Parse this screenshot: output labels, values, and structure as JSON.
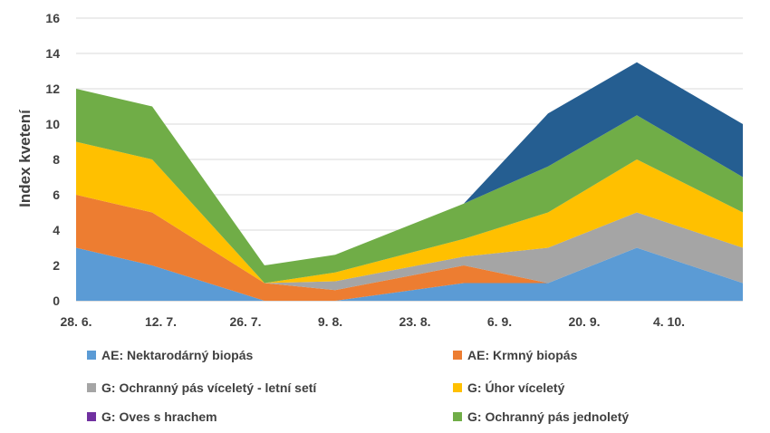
{
  "chart_data": {
    "type": "area",
    "stacked": true,
    "ylabel": "Index kvetení",
    "ylim": [
      0,
      16
    ],
    "yticks": [
      "0",
      "2",
      "4",
      "6",
      "8",
      "10",
      "12",
      "14",
      "16"
    ],
    "xticks": [
      "28. 6.",
      "12. 7.",
      "26. 7.",
      "9. 8.",
      "23. 8.",
      "6. 9.",
      "20. 9.",
      "4. 10."
    ],
    "grid": true,
    "legend_position": "bottom",
    "series": [
      {
        "name": "AE: Nektarodárný biopás",
        "color": "#5b9bd5",
        "points": [
          [
            28.6,
            3.0
          ],
          [
            12.7,
            2.0
          ],
          [
            27.7,
            0.0
          ],
          [
            11.8,
            0.0
          ],
          [
            1.9,
            1.0
          ],
          [
            16.9,
            1.0
          ],
          [
            1.1,
            3.0
          ],
          [
            16.1,
            1.0
          ]
        ]
      },
      {
        "name": "AE: Krmný biopás",
        "color": "#ed7d31",
        "points": [
          [
            28.6,
            3.0
          ],
          [
            12.7,
            3.0
          ],
          [
            27.7,
            1.0
          ],
          [
            11.8,
            0.6
          ],
          [
            1.9,
            1.0
          ],
          [
            16.9,
            0.0
          ],
          [
            1.1,
            0.0
          ],
          [
            16.1,
            0.0
          ]
        ]
      },
      {
        "name": "G: Ochranný pás víceletý - letní setí",
        "color": "#a5a5a5",
        "points": [
          [
            28.6,
            0.0
          ],
          [
            12.7,
            0.0
          ],
          [
            27.7,
            0.0
          ],
          [
            11.8,
            0.5
          ],
          [
            1.9,
            0.5
          ],
          [
            16.9,
            2.0
          ],
          [
            1.1,
            2.0
          ],
          [
            16.1,
            2.0
          ]
        ]
      },
      {
        "name": "G: Úhor víceletý",
        "color": "#ffc000",
        "points": [
          [
            28.6,
            3.0
          ],
          [
            12.7,
            3.0
          ],
          [
            27.7,
            0.0
          ],
          [
            11.8,
            0.5
          ],
          [
            1.9,
            1.0
          ],
          [
            16.9,
            2.0
          ],
          [
            1.1,
            3.0
          ],
          [
            16.1,
            2.0
          ]
        ]
      },
      {
        "name": "G: Oves s hrachem",
        "color": "#7030a0",
        "points": [
          [
            28.6,
            0.0
          ],
          [
            12.7,
            0.0
          ],
          [
            27.7,
            0.0
          ],
          [
            11.8,
            0.0
          ],
          [
            1.9,
            0.0
          ],
          [
            16.9,
            0.0
          ],
          [
            1.1,
            0.0
          ],
          [
            16.1,
            0.0
          ]
        ]
      },
      {
        "name": "G: Ochranný pás jednoletý",
        "color": "#70ad47",
        "points": [
          [
            28.6,
            3.0
          ],
          [
            12.7,
            3.0
          ],
          [
            27.7,
            1.0
          ],
          [
            11.8,
            1.0
          ],
          [
            1.9,
            2.0
          ],
          [
            16.9,
            2.6
          ],
          [
            1.1,
            2.5
          ],
          [
            16.1,
            2.0
          ]
        ]
      },
      {
        "name": "",
        "color": "#255e91",
        "points": [
          [
            28.6,
            0.0
          ],
          [
            12.7,
            0.0
          ],
          [
            27.7,
            0.0
          ],
          [
            11.8,
            0.0
          ],
          [
            1.9,
            0.0
          ],
          [
            16.9,
            3.0
          ],
          [
            1.1,
            3.0
          ],
          [
            16.1,
            3.0
          ]
        ]
      }
    ]
  }
}
